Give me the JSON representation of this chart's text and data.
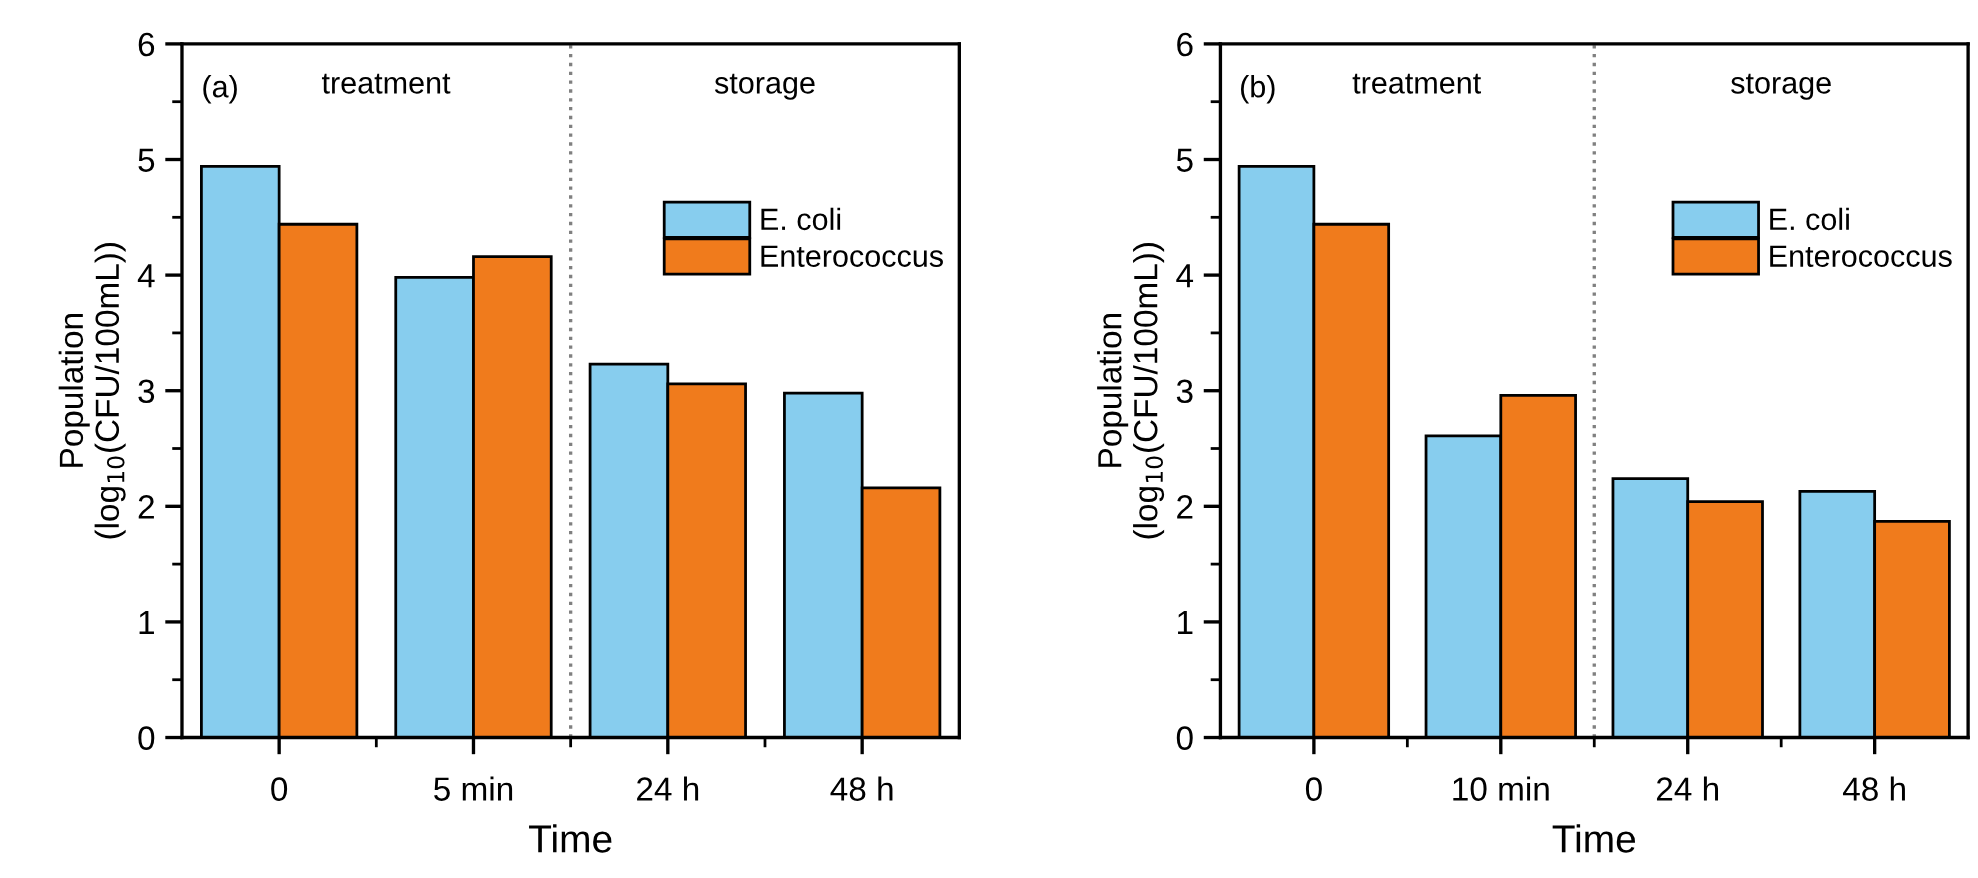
{
  "chart_data": [
    {
      "type": "bar",
      "title": "(a)",
      "xlabel": "Time",
      "ylabel": "Population\n(log$_{10}$(CFU/100mL))",
      "categories": [
        "0",
        "5 min",
        "24 h",
        "48 h"
      ],
      "series": [
        {
          "name": "E. coli",
          "color": "#87cdee",
          "values": [
            4.94,
            3.98,
            3.23,
            2.98
          ]
        },
        {
          "name": "Enterococcus",
          "color": "#f07b1c",
          "values": [
            4.44,
            4.16,
            3.06,
            2.16
          ]
        }
      ],
      "ylim": [
        0,
        6
      ],
      "yticks": [
        0,
        1,
        2,
        3,
        4,
        5,
        6
      ],
      "grid": false,
      "legend": "right",
      "annotations": [
        "treatment",
        "storage"
      ]
    },
    {
      "type": "bar",
      "title": "(b)",
      "xlabel": "Time",
      "ylabel": "Population\n(log$_{10}$(CFU/100mL))",
      "categories": [
        "0",
        "10 min",
        "24 h",
        "48 h"
      ],
      "series": [
        {
          "name": "E. coli",
          "color": "#87cdee",
          "values": [
            4.94,
            2.61,
            2.24,
            2.13
          ]
        },
        {
          "name": "Enterococcus",
          "color": "#f07b1c",
          "values": [
            4.44,
            2.96,
            2.04,
            1.87
          ]
        }
      ],
      "ylim": [
        0,
        6
      ],
      "yticks": [
        0,
        1,
        2,
        3,
        4,
        5,
        6
      ],
      "grid": false,
      "legend": "right",
      "annotations": [
        "treatment",
        "storage"
      ]
    }
  ]
}
